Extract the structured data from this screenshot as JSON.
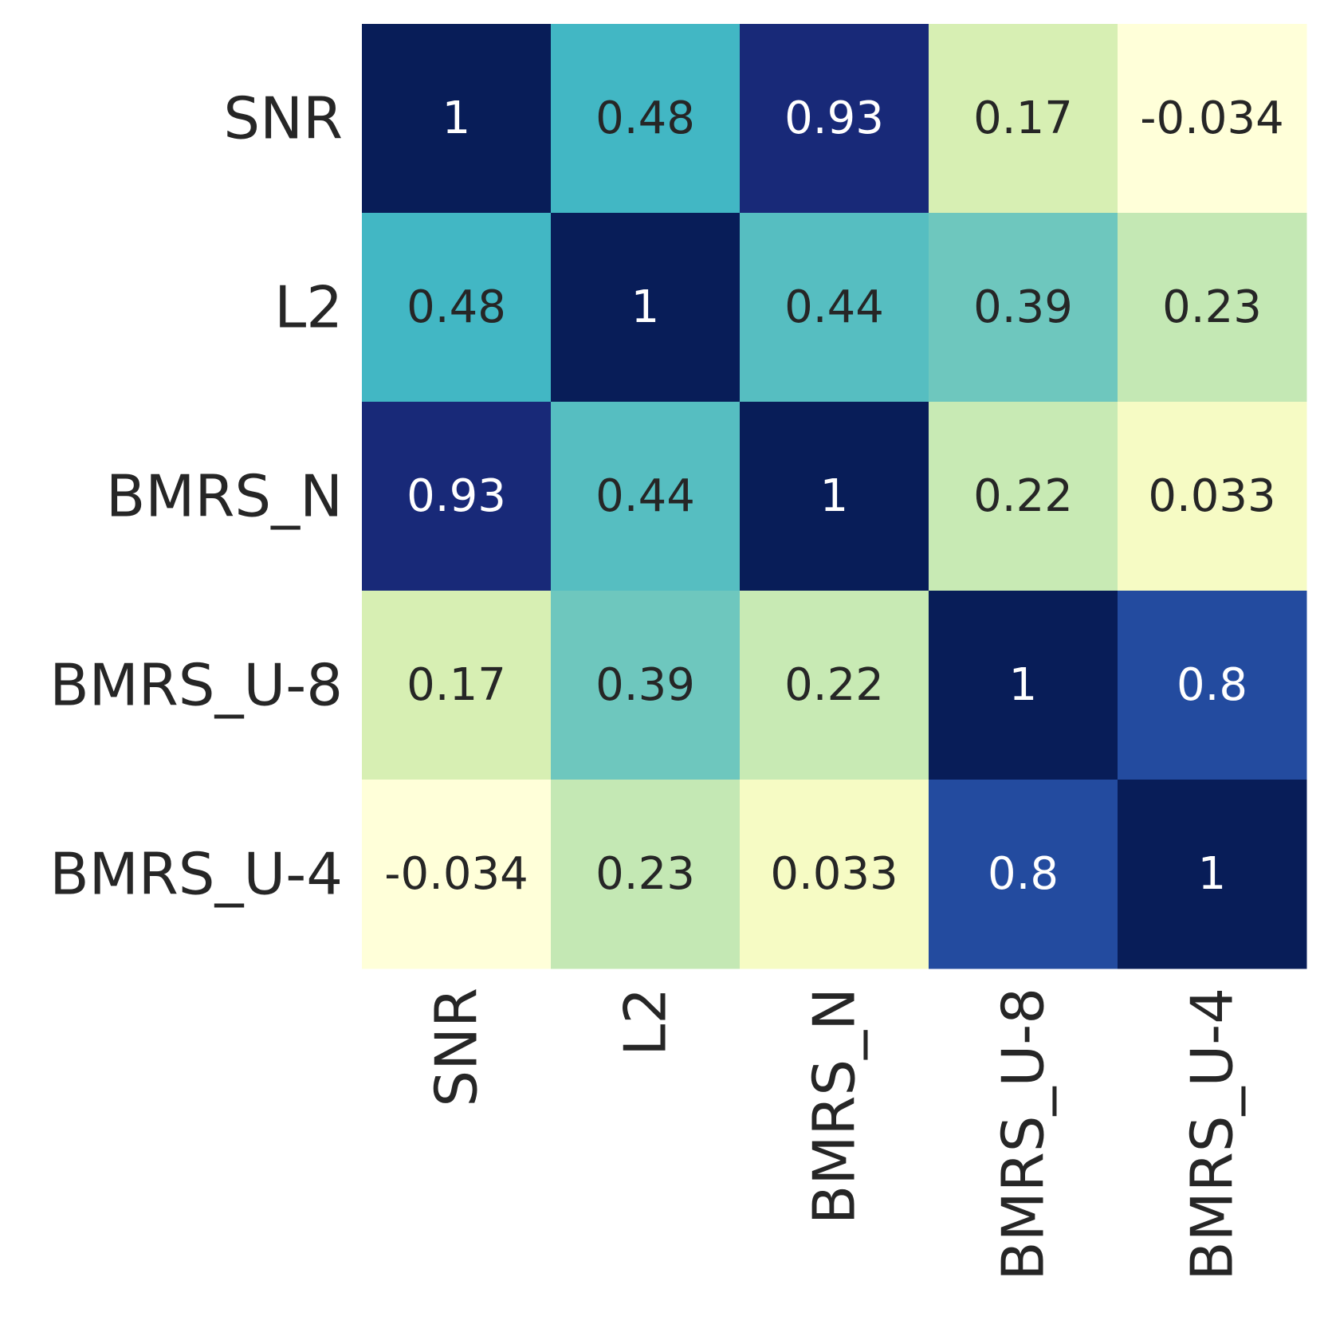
{
  "chart_data": {
    "type": "heatmap",
    "title": "",
    "xlabel": "",
    "ylabel": "",
    "row_labels": [
      "SNR",
      "L2",
      "BMRS_N",
      "BMRS_U-8",
      "BMRS_U-4"
    ],
    "col_labels": [
      "SNR",
      "L2",
      "BMRS_N",
      "BMRS_U-8",
      "BMRS_U-4"
    ],
    "values": [
      [
        1,
        0.48,
        0.93,
        0.17,
        -0.034
      ],
      [
        0.48,
        1,
        0.44,
        0.39,
        0.23
      ],
      [
        0.93,
        0.44,
        1,
        0.22,
        0.033
      ],
      [
        0.17,
        0.39,
        0.22,
        1,
        0.8
      ],
      [
        -0.034,
        0.23,
        0.033,
        0.8,
        1
      ]
    ],
    "display_values": [
      [
        "1",
        "0.48",
        "0.93",
        "0.17",
        "-0.034"
      ],
      [
        "0.48",
        "1",
        "0.44",
        "0.39",
        "0.23"
      ],
      [
        "0.93",
        "0.44",
        "1",
        "0.22",
        "0.033"
      ],
      [
        "0.17",
        "0.39",
        "0.22",
        "1",
        "0.8"
      ],
      [
        "-0.034",
        "0.23",
        "0.033",
        "0.8",
        "1"
      ]
    ],
    "colormap": "YlGnBu",
    "vmin": -0.034,
    "vmax": 1,
    "colorbar": false,
    "annotation_colors": {
      "dark_text": "#262626",
      "light_text": "#ffffff"
    }
  }
}
